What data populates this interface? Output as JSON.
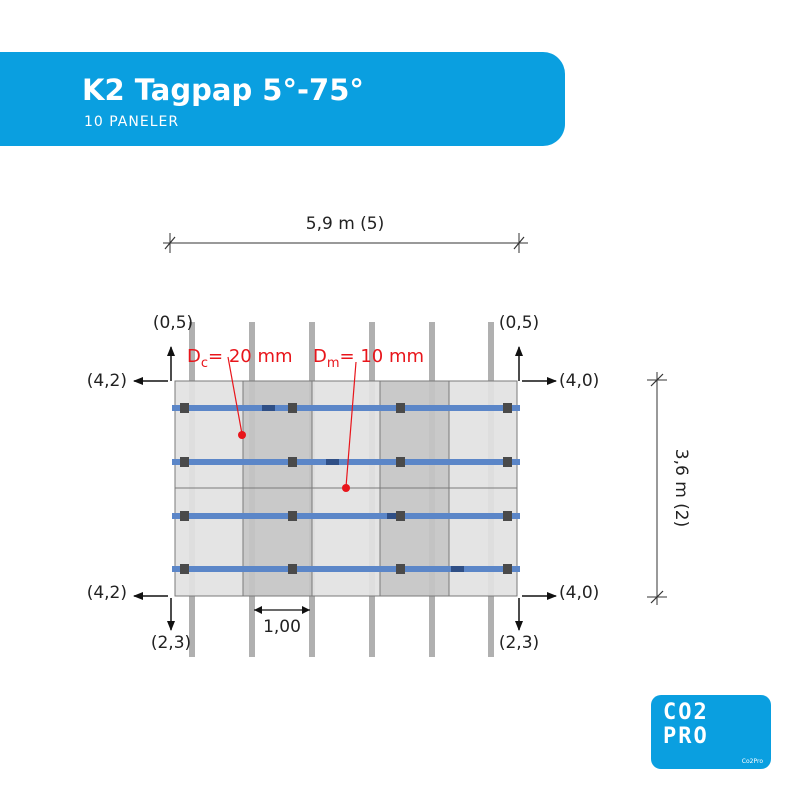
{
  "header": {
    "title": "K2 Tagpap 5°-75°",
    "subtitle": "10 PANELER"
  },
  "dimensions": {
    "width": "5,9 m (5)",
    "height": "3,6 m (2)",
    "spacing": "1,00"
  },
  "deflections": {
    "dc": {
      "symbol": "D",
      "sub": "c",
      "value": "= 20 mm"
    },
    "dm": {
      "symbol": "D",
      "sub": "m",
      "value": "= 10 mm"
    }
  },
  "loads": {
    "top_left": "(0,5)",
    "top_right": "(0,5)",
    "upper_left": "(4,2)",
    "upper_right": "(4,0)",
    "lower_left": "(4,2)",
    "lower_right": "(4,0)",
    "bottom_left": "(2,3)",
    "bottom_right": "(2,3)"
  },
  "logo": {
    "line1": "CO2",
    "line2": "PRO",
    "small": "Co2Pro"
  },
  "colors": {
    "brand_blue": "#0a9fe0",
    "rail_blue": "#5b86c8",
    "highlight_red": "#e8151b",
    "panel_light": "#e2e2e2",
    "panel_dark": "#c4c4c4",
    "support_gray": "#b0b0b0"
  }
}
